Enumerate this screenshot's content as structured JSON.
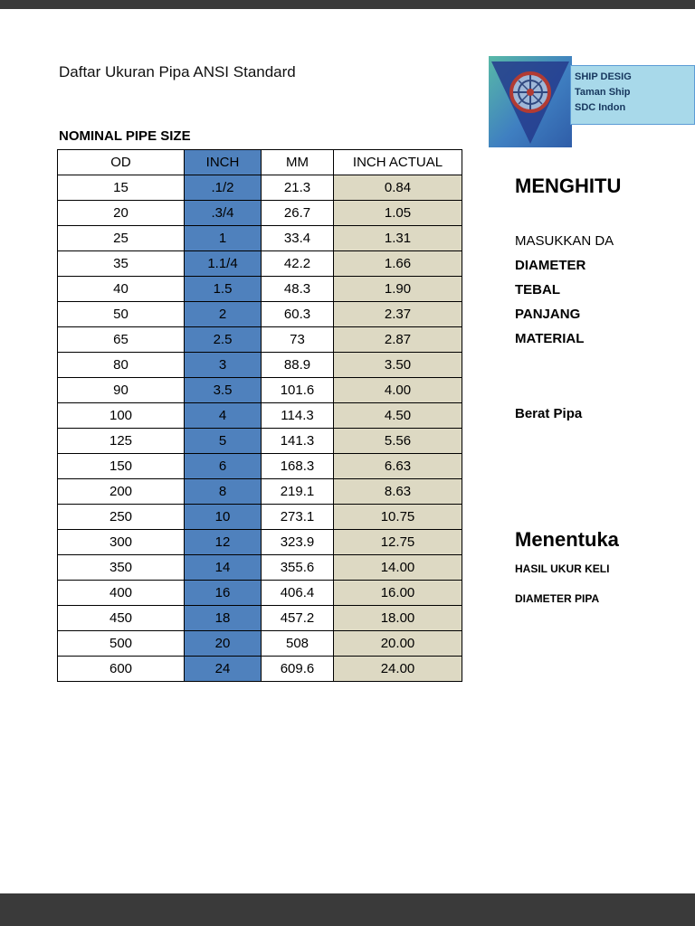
{
  "page": {
    "title": "Daftar Ukuran Pipa ANSI Standard",
    "section_header": "NOMINAL PIPE SIZE"
  },
  "logo": {
    "caption_lines": [
      "SHIP DESIG",
      "Taman Ship",
      "SDC Indon"
    ]
  },
  "table": {
    "headers": [
      "OD",
      "INCH",
      "MM",
      "INCH ACTUAL"
    ],
    "rows": [
      [
        "15",
        ".1/2",
        "21.3",
        "0.84"
      ],
      [
        "20",
        ".3/4",
        "26.7",
        "1.05"
      ],
      [
        "25",
        "1",
        "33.4",
        "1.31"
      ],
      [
        "35",
        "1.1/4",
        "42.2",
        "1.66"
      ],
      [
        "40",
        "1.5",
        "48.3",
        "1.90"
      ],
      [
        "50",
        "2",
        "60.3",
        "2.37"
      ],
      [
        "65",
        "2.5",
        "73",
        "2.87"
      ],
      [
        "80",
        "3",
        "88.9",
        "3.50"
      ],
      [
        "90",
        "3.5",
        "101.6",
        "4.00"
      ],
      [
        "100",
        "4",
        "114.3",
        "4.50"
      ],
      [
        "125",
        "5",
        "141.3",
        "5.56"
      ],
      [
        "150",
        "6",
        "168.3",
        "6.63"
      ],
      [
        "200",
        "8",
        "219.1",
        "8.63"
      ],
      [
        "250",
        "10",
        "273.1",
        "10.75"
      ],
      [
        "300",
        "12",
        "323.9",
        "12.75"
      ],
      [
        "350",
        "14",
        "355.6",
        "14.00"
      ],
      [
        "400",
        "16",
        "406.4",
        "16.00"
      ],
      [
        "450",
        "18",
        "457.2",
        "18.00"
      ],
      [
        "500",
        "20",
        "508",
        "20.00"
      ],
      [
        "600",
        "24",
        "609.6",
        "24.00"
      ]
    ]
  },
  "right_panel": {
    "heading_1": "MENGHITU",
    "line_masukkan": "MASUKKAN DA",
    "label_diameter": "DIAMETER",
    "label_tebal": "TEBAL",
    "label_panjang": "PANJANG",
    "label_material": "MATERIAL",
    "label_berat": "Berat Pipa",
    "heading_2": "Menentuka",
    "label_hasil": "HASIL UKUR KELI",
    "label_diameter_pipa": "DIAMETER PIPA"
  },
  "colors": {
    "inch_column_bg": "#4f81bd",
    "inch_actual_bg": "#ddd9c3",
    "letterbox": "#3a3a3a",
    "logo_caption_bg": "#a8d9ea",
    "logo_caption_text": "#17375e"
  }
}
